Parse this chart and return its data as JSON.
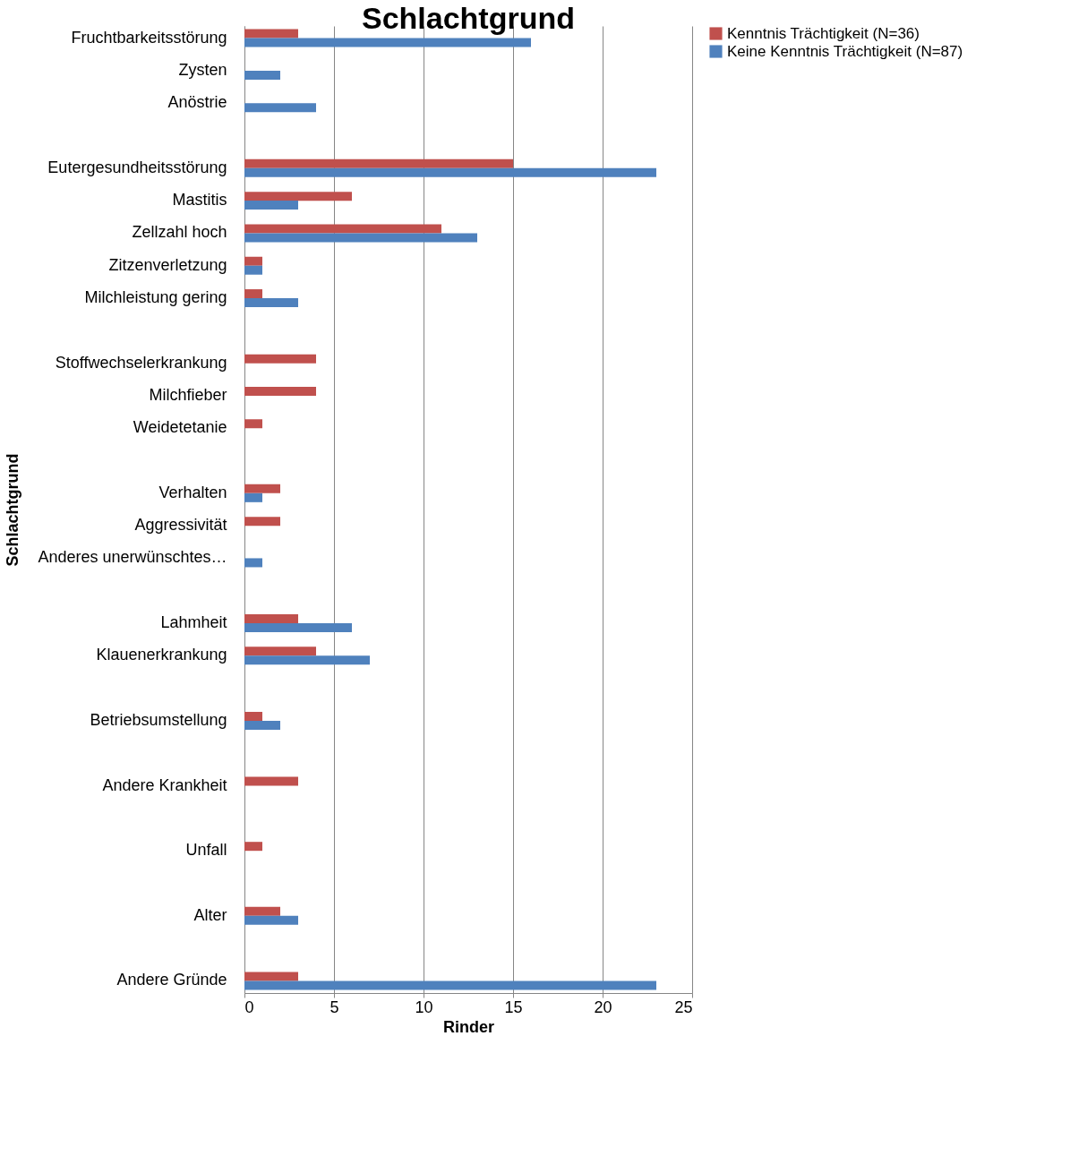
{
  "chart_data": {
    "type": "bar",
    "orientation": "horizontal",
    "title": "Schlachtgrund",
    "xlabel": "Rinder",
    "ylabel": "Schlachtgrund",
    "categories": [
      "Fruchtbarkeitsstörung",
      "Zysten",
      "Anöstrie",
      null,
      "Eutergesundheitsstörung",
      "Mastitis",
      "Zellzahl hoch",
      "Zitzenverletzung",
      "Milchleistung gering",
      null,
      "Stoffwechselerkrankung",
      "Milchfieber",
      "Weidetetanie",
      null,
      "Verhalten",
      "Aggressivität",
      "Anderes unerwünschtes…",
      null,
      "Lahmheit",
      "Klauenerkrankung",
      null,
      "Betriebsumstellung",
      null,
      "Andere Krankheit",
      null,
      "Unfall",
      null,
      "Alter",
      null,
      "Andere Gründe"
    ],
    "series": [
      {
        "name": "Kenntnis Trächtigkeit (N=36)",
        "color": "#c0504d",
        "values": [
          3,
          null,
          null,
          null,
          15,
          6,
          11,
          1,
          1,
          null,
          4,
          4,
          1,
          null,
          2,
          2,
          null,
          null,
          3,
          4,
          null,
          1,
          null,
          3,
          null,
          1,
          null,
          2,
          null,
          3
        ]
      },
      {
        "name": "Keine Kenntnis Trächtigkeit (N=87)",
        "color": "#4f81bd",
        "values": [
          16,
          2,
          4,
          null,
          23,
          3,
          13,
          1,
          3,
          null,
          null,
          null,
          null,
          null,
          1,
          null,
          1,
          null,
          6,
          7,
          null,
          2,
          null,
          null,
          null,
          null,
          null,
          3,
          null,
          23
        ]
      }
    ],
    "xlim": [
      0,
      25
    ],
    "xticks": [
      0,
      5,
      10,
      15,
      20,
      25
    ],
    "grid": "x",
    "legend": "right"
  }
}
